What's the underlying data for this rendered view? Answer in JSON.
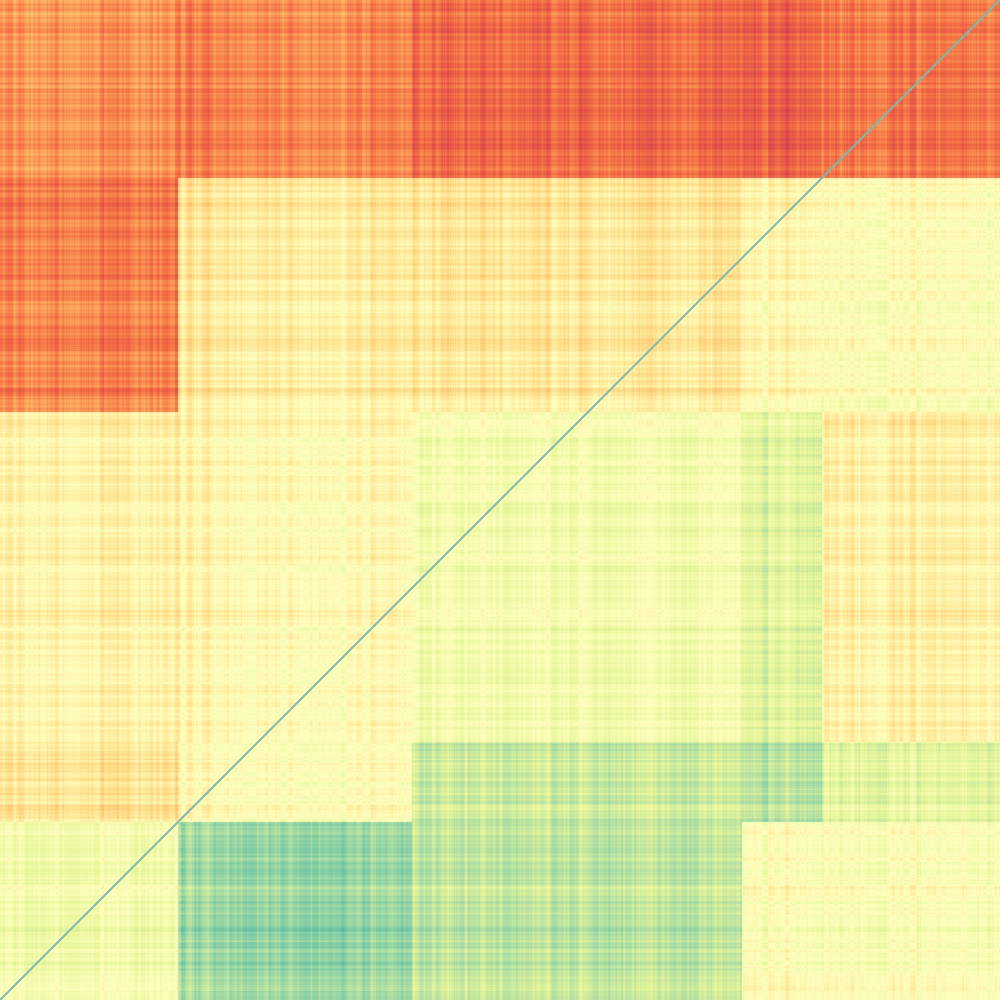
{
  "chart_data": {
    "type": "heatmap",
    "title": "",
    "xlabel": "",
    "ylabel": "",
    "grid": false,
    "legend": "none",
    "matrix_size": 1000,
    "block_boundaries": [
      0,
      178,
      412,
      742,
      822,
      1000
    ],
    "block_levels": [
      [
        0.2,
        0.18,
        0.12,
        0.1,
        0.15
      ],
      [
        0.15,
        0.42,
        0.4,
        0.46,
        0.5
      ],
      [
        0.45,
        0.48,
        0.55,
        0.62,
        0.45
      ],
      [
        0.4,
        0.5,
        0.68,
        0.72,
        0.62
      ],
      [
        0.55,
        0.78,
        0.7,
        0.5,
        0.52
      ]
    ],
    "value_range": [
      0,
      1
    ],
    "colormap": {
      "name": "Spectral",
      "stops": [
        "#d53e4f",
        "#f46d43",
        "#fdae61",
        "#fee08b",
        "#ffffbf",
        "#e6f598",
        "#abdda4",
        "#66c2a5",
        "#3288bd"
      ]
    },
    "diagonal_color": "#7fb8b0"
  }
}
